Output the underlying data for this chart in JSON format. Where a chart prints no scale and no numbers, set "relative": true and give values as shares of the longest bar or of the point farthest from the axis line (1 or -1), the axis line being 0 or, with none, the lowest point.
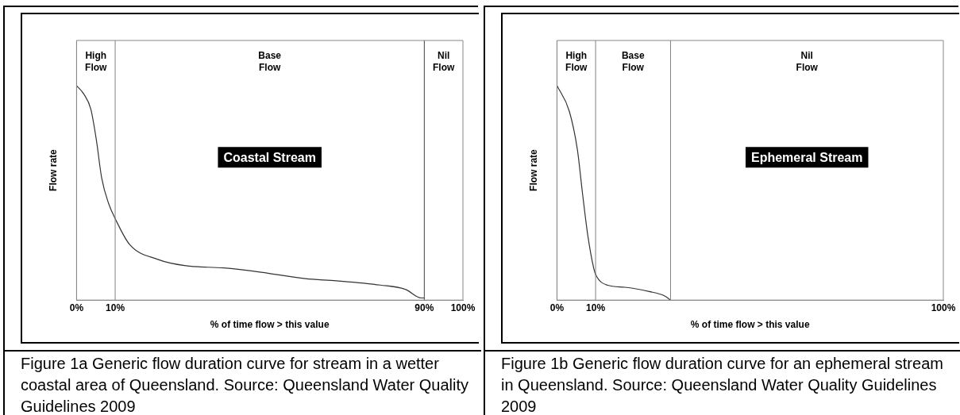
{
  "chart_data": [
    {
      "type": "line",
      "title": "Coastal Stream",
      "xlabel": "% of time flow > this value",
      "ylabel": "Flow rate",
      "relative": true,
      "grid": false,
      "legend": false,
      "marker": "none",
      "line_style": "solid",
      "xlim": [
        0,
        100
      ],
      "xticks": [
        {
          "value": 0,
          "label": "0%"
        },
        {
          "value": 10,
          "label": "10%"
        },
        {
          "value": 90,
          "label": "90%"
        },
        {
          "value": 100,
          "label": "100%"
        }
      ],
      "series": [
        {
          "color": "#333333",
          "x": [
            0,
            1.9,
            3.7,
            5.1,
            6.5,
            8.3,
            10,
            13.7,
            21.0,
            28.3,
            38.1,
            47.8,
            59.2,
            67.3,
            78.6,
            85.1,
            89.2,
            90
          ],
          "values": [
            1,
            0.96,
            0.89,
            0.75,
            0.57,
            0.45,
            0.38,
            0.26,
            0.19,
            0.16,
            0.15,
            0.13,
            0.1,
            0.09,
            0.07,
            0.05,
            0.01,
            0.01
          ]
        }
      ],
      "ref_lines": [
        {
          "axis": "x",
          "value": 10,
          "color": "#808080"
        },
        {
          "axis": "x",
          "value": 90,
          "color": "#404040"
        }
      ],
      "annotations": [
        "High Flow",
        "Base Flow",
        "Nil Flow",
        "Figure 1a Generic flow duration curve for stream in a wetter coastal area of Queensland. Source: Queensland Water Quality Guidelines 2009"
      ]
    },
    {
      "type": "line",
      "title": "Ephemeral Stream",
      "xlabel": "% of time flow > this value",
      "ylabel": "Flow rate",
      "relative": true,
      "grid": false,
      "legend": false,
      "marker": "none",
      "line_style": "solid",
      "xlim": [
        0,
        100
      ],
      "xticks": [
        {
          "value": 0,
          "label": "0%"
        },
        {
          "value": 10,
          "label": "10%"
        },
        {
          "value": 100,
          "label": "100%"
        }
      ],
      "series": [
        {
          "color": "#333333",
          "x": [
            0,
            3.2,
            5.3,
            6.6,
            8.0,
            9.5,
            10,
            13.0,
            17.6,
            23.9,
            27.8,
            29.4
          ],
          "values": [
            1,
            0.88,
            0.7,
            0.5,
            0.3,
            0.15,
            0.12,
            0.07,
            0.06,
            0.04,
            0.02,
            0.0
          ]
        }
      ],
      "ref_lines": [
        {
          "axis": "x",
          "value": 10,
          "color": "#808080"
        },
        {
          "axis": "x",
          "value": 29.4,
          "color": "#808080"
        }
      ],
      "annotations": [
        "High Flow",
        "Base Flow",
        "Nil Flow",
        "Figure 1b Generic flow duration curve for an ephemeral stream in Queensland. Source: Queensland Water Quality Guidelines 2009"
      ]
    }
  ]
}
